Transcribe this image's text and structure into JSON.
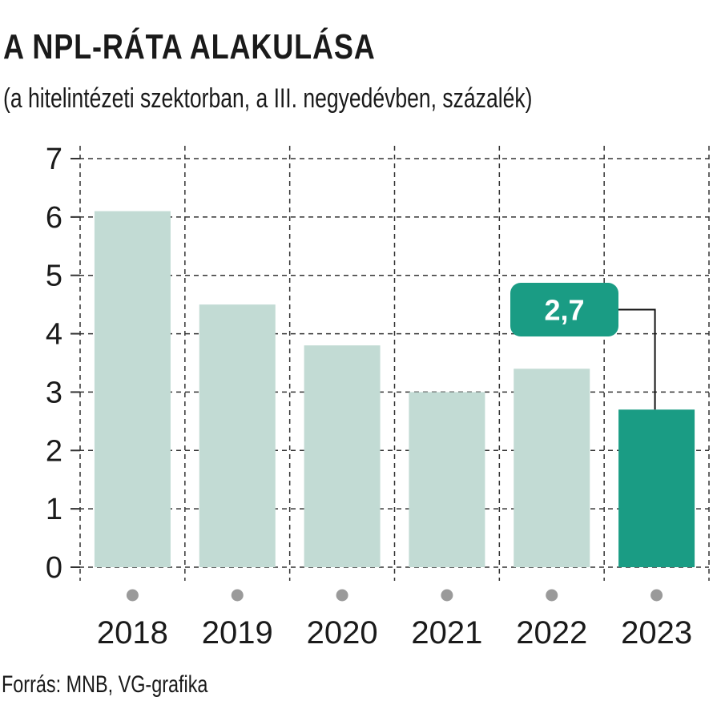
{
  "title": "A NPL-RÁTA ALAKULÁSA",
  "subtitle": "(a hitelintézeti szektorban, a III. negyedévben, százalék)",
  "source": "Forrás: MNB, VG-grafika",
  "colors": {
    "bar": "#c2dbd4",
    "highlight": "#1a9c84",
    "grid": "#333333",
    "dot": "#9a9a9a"
  },
  "chart_data": {
    "type": "bar",
    "categories": [
      "2018",
      "2019",
      "2020",
      "2021",
      "2022",
      "2023"
    ],
    "values": [
      6.1,
      4.5,
      3.8,
      3.0,
      3.4,
      2.7
    ],
    "ylim": [
      0,
      7
    ],
    "yticks": [
      0,
      1,
      2,
      3,
      4,
      5,
      6,
      7
    ],
    "grid": true,
    "highlight_index": 5,
    "annotation": {
      "category": "2023",
      "text": "2,7"
    }
  }
}
